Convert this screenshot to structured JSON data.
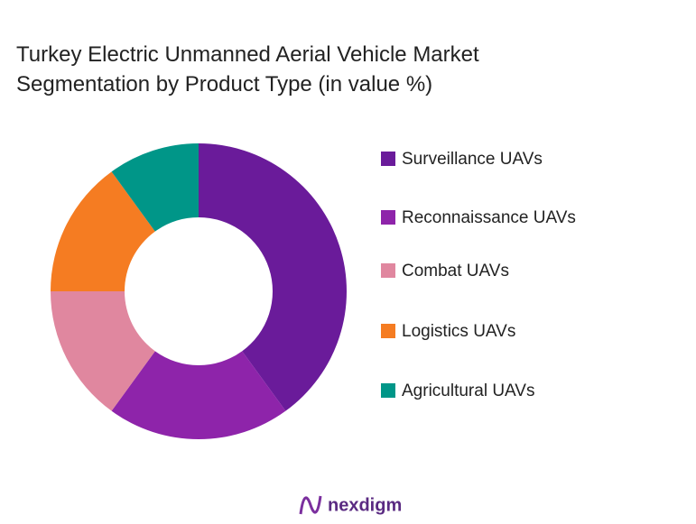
{
  "chart_data": {
    "type": "donut",
    "title": "Turkey Electric Unmanned Aerial Vehicle Market Segmentation by Product Type (in value %)",
    "categories": [
      "Surveillance UAVs",
      "Reconnaissance UAVs",
      "Combat UAVs",
      "Logistics UAVs",
      "Agricultural UAVs"
    ],
    "values": [
      40,
      20,
      15,
      15,
      10
    ],
    "colors": [
      "#6a1b9a",
      "#8e24aa",
      "#e0879f",
      "#f57c22",
      "#009688"
    ],
    "legend": "right"
  },
  "brand": "nexdigm"
}
